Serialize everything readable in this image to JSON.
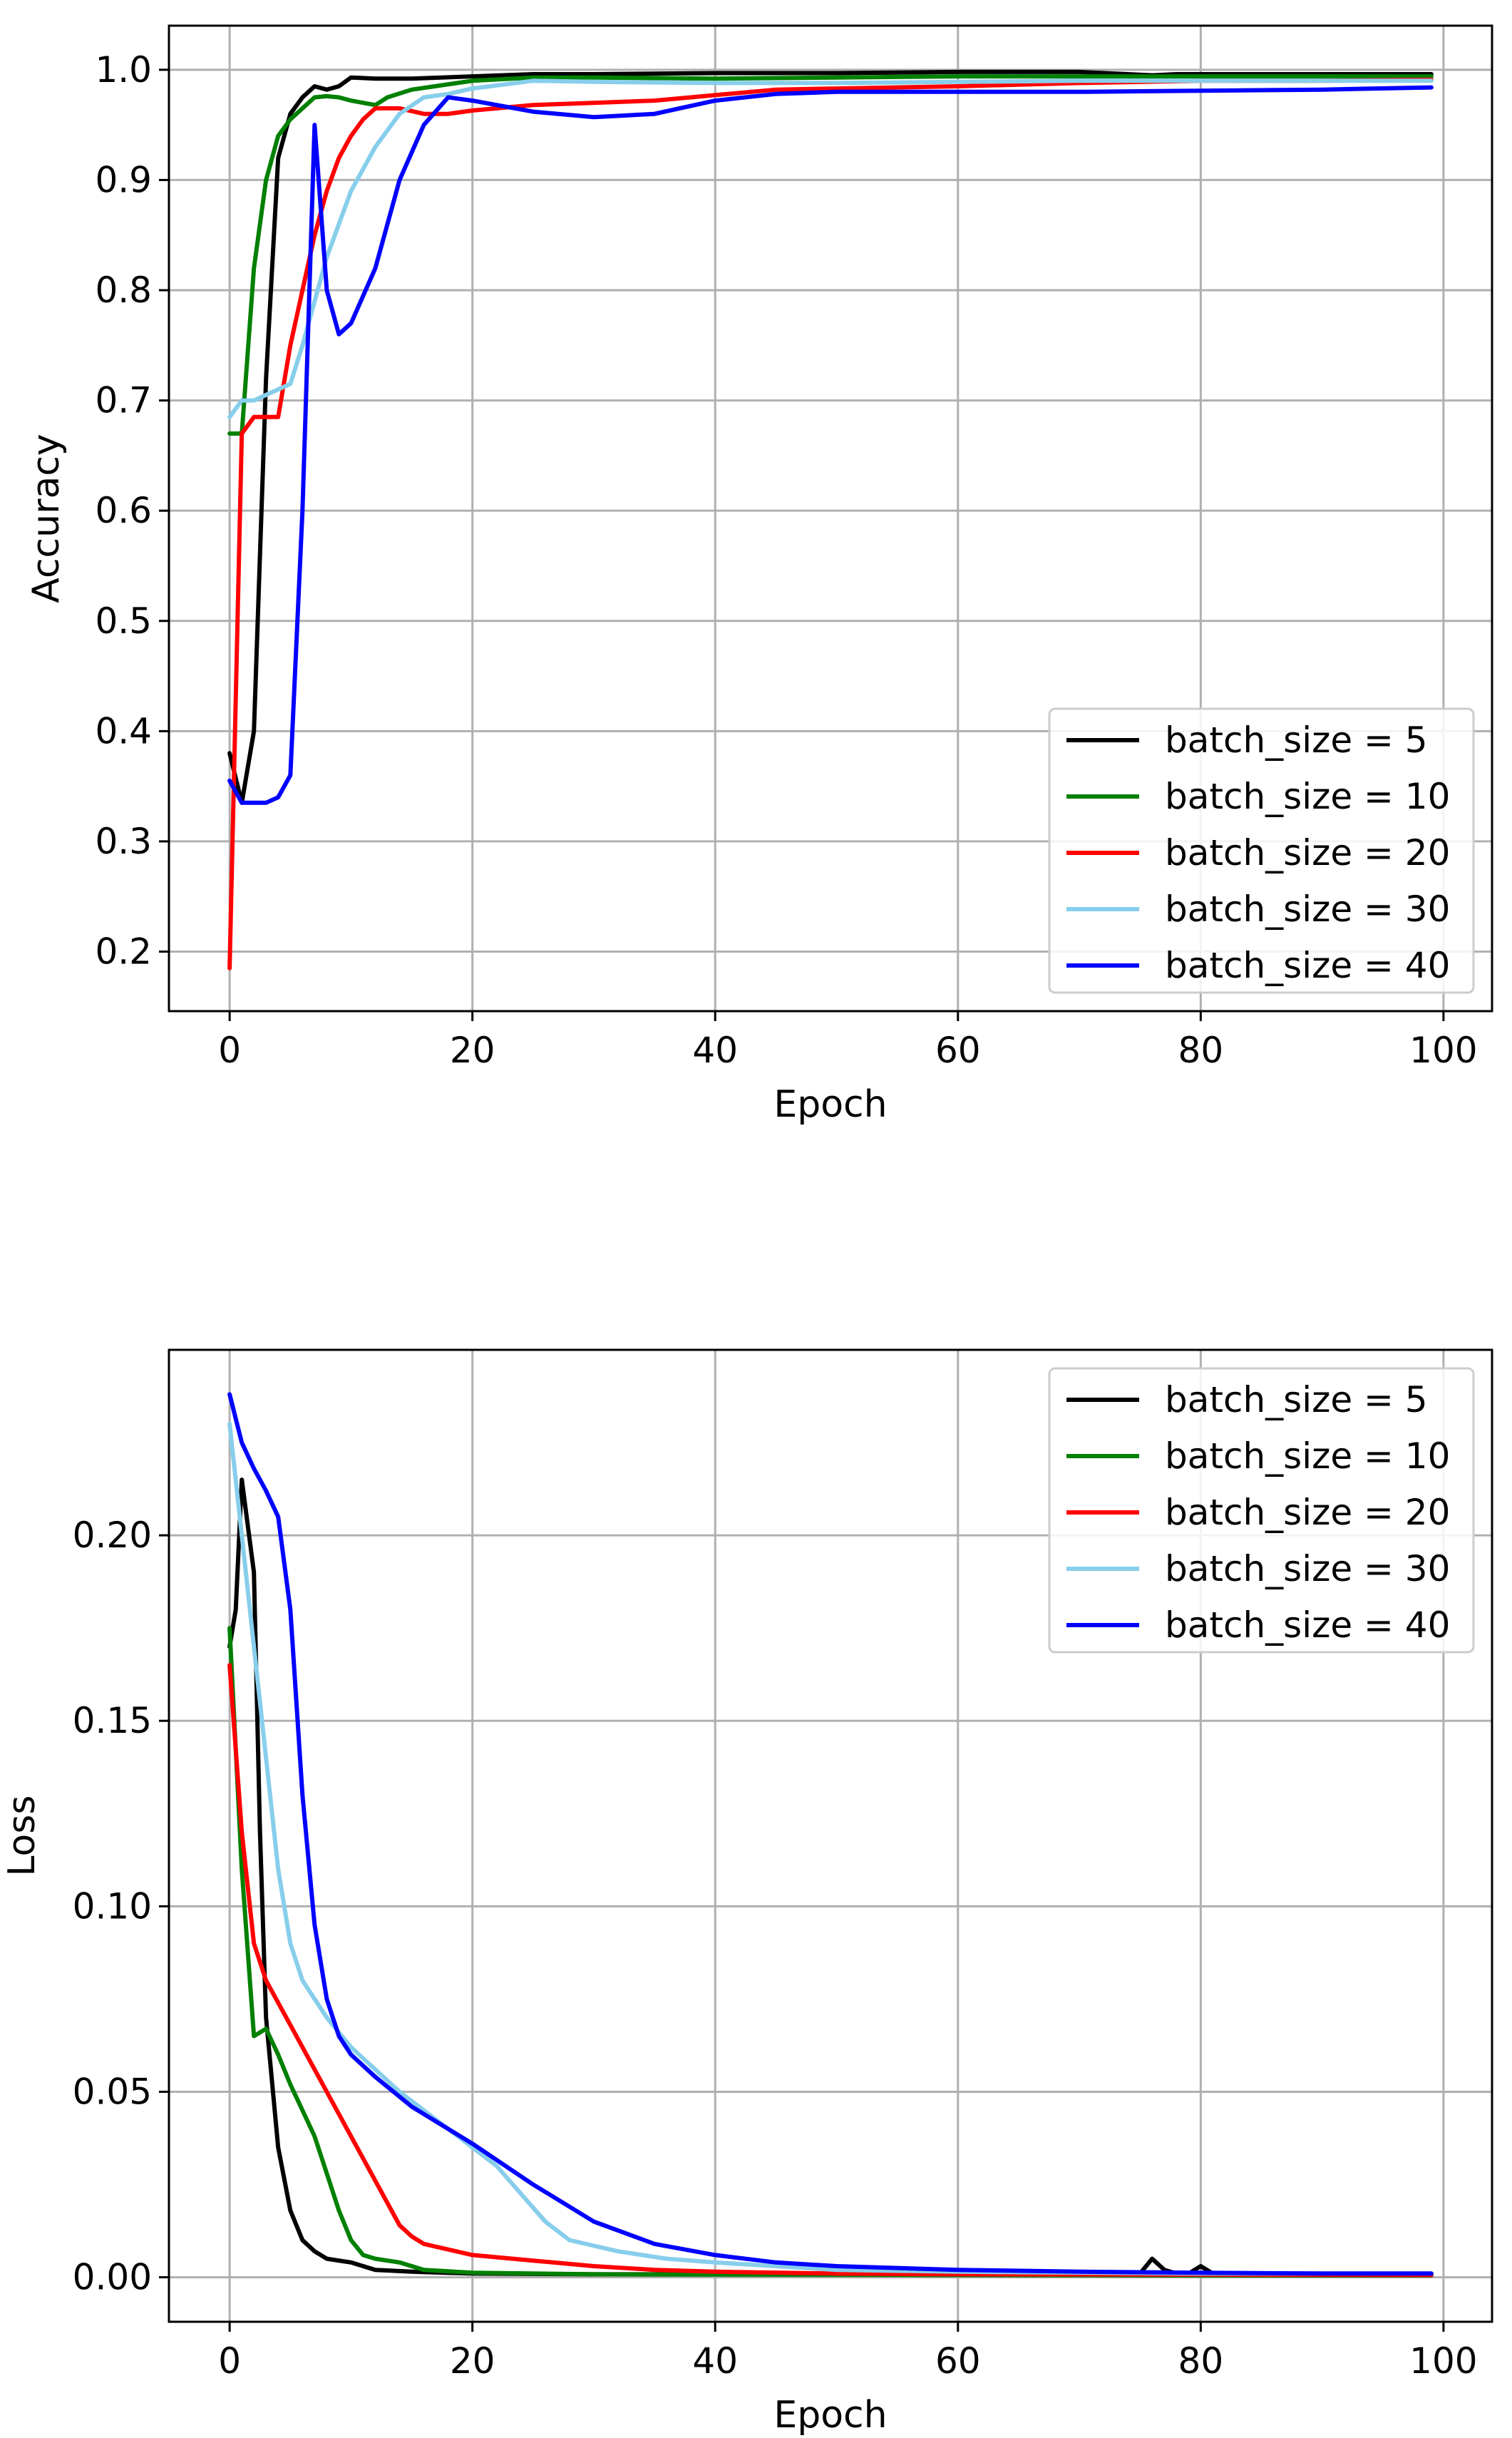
{
  "colors": {
    "batch_5": "#000000",
    "batch_10": "#008000",
    "batch_20": "#ff0000",
    "batch_30": "#87ceeb",
    "batch_40": "#0000ff",
    "grid": "#b0b0b0",
    "axes": "#000000",
    "legend_border": "#cccccc"
  },
  "chart_data": [
    {
      "type": "line",
      "title": "",
      "xlabel": "Epoch",
      "ylabel": "Accuracy",
      "xlim": [
        -5,
        104
      ],
      "ylim": [
        0.146,
        1.04
      ],
      "xticks": [
        0,
        20,
        40,
        60,
        80,
        100
      ],
      "xtick_labels": [
        "0",
        "20",
        "40",
        "60",
        "80",
        "100"
      ],
      "yticks": [
        0.2,
        0.3,
        0.4,
        0.5,
        0.6,
        0.7,
        0.8,
        0.9,
        1.0
      ],
      "ytick_labels": [
        "0.2",
        "0.3",
        "0.4",
        "0.5",
        "0.6",
        "0.7",
        "0.8",
        "0.9",
        "1.0"
      ],
      "grid": true,
      "legend_position": "lower-right",
      "series": [
        {
          "name": "batch_size = 5",
          "color": "#000000",
          "points": [
            [
              0,
              0.38
            ],
            [
              1,
              0.335
            ],
            [
              2,
              0.4
            ],
            [
              3,
              0.72
            ],
            [
              4,
              0.92
            ],
            [
              5,
              0.96
            ],
            [
              6,
              0.975
            ],
            [
              7,
              0.985
            ],
            [
              8,
              0.982
            ],
            [
              9,
              0.985
            ],
            [
              10,
              0.993
            ],
            [
              12,
              0.992
            ],
            [
              15,
              0.992
            ],
            [
              20,
              0.994
            ],
            [
              25,
              0.996
            ],
            [
              30,
              0.996
            ],
            [
              40,
              0.997
            ],
            [
              50,
              0.997
            ],
            [
              60,
              0.998
            ],
            [
              70,
              0.998
            ],
            [
              74,
              0.996
            ],
            [
              76,
              0.995
            ],
            [
              78,
              0.996
            ],
            [
              80,
              0.996
            ],
            [
              90,
              0.996
            ],
            [
              99,
              0.996
            ]
          ]
        },
        {
          "name": "batch_size = 10",
          "color": "#008000",
          "points": [
            [
              0,
              0.67
            ],
            [
              1,
              0.67
            ],
            [
              2,
              0.82
            ],
            [
              3,
              0.9
            ],
            [
              4,
              0.94
            ],
            [
              5,
              0.955
            ],
            [
              6,
              0.965
            ],
            [
              7,
              0.975
            ],
            [
              8,
              0.976
            ],
            [
              9,
              0.975
            ],
            [
              10,
              0.972
            ],
            [
              11,
              0.97
            ],
            [
              12,
              0.968
            ],
            [
              13,
              0.975
            ],
            [
              15,
              0.982
            ],
            [
              20,
              0.99
            ],
            [
              25,
              0.993
            ],
            [
              30,
              0.993
            ],
            [
              40,
              0.992
            ],
            [
              50,
              0.993
            ],
            [
              60,
              0.994
            ],
            [
              70,
              0.994
            ],
            [
              80,
              0.994
            ],
            [
              90,
              0.994
            ],
            [
              99,
              0.994
            ]
          ]
        },
        {
          "name": "batch_size = 20",
          "color": "#ff0000",
          "points": [
            [
              0,
              0.185
            ],
            [
              1,
              0.67
            ],
            [
              2,
              0.685
            ],
            [
              3,
              0.685
            ],
            [
              4,
              0.685
            ],
            [
              5,
              0.75
            ],
            [
              6,
              0.8
            ],
            [
              7,
              0.85
            ],
            [
              8,
              0.89
            ],
            [
              9,
              0.92
            ],
            [
              10,
              0.94
            ],
            [
              11,
              0.955
            ],
            [
              12,
              0.965
            ],
            [
              14,
              0.965
            ],
            [
              16,
              0.96
            ],
            [
              18,
              0.96
            ],
            [
              20,
              0.963
            ],
            [
              25,
              0.968
            ],
            [
              30,
              0.97
            ],
            [
              35,
              0.972
            ],
            [
              40,
              0.977
            ],
            [
              45,
              0.982
            ],
            [
              50,
              0.983
            ],
            [
              60,
              0.985
            ],
            [
              70,
              0.988
            ],
            [
              80,
              0.99
            ],
            [
              90,
              0.99
            ],
            [
              99,
              0.991
            ]
          ]
        },
        {
          "name": "batch_size = 30",
          "color": "#87ceeb",
          "points": [
            [
              0,
              0.685
            ],
            [
              1,
              0.7
            ],
            [
              2,
              0.7
            ],
            [
              3,
              0.705
            ],
            [
              4,
              0.71
            ],
            [
              5,
              0.715
            ],
            [
              6,
              0.75
            ],
            [
              7,
              0.79
            ],
            [
              8,
              0.83
            ],
            [
              9,
              0.86
            ],
            [
              10,
              0.89
            ],
            [
              12,
              0.93
            ],
            [
              14,
              0.96
            ],
            [
              16,
              0.975
            ],
            [
              18,
              0.978
            ],
            [
              20,
              0.983
            ],
            [
              25,
              0.99
            ],
            [
              30,
              0.989
            ],
            [
              40,
              0.988
            ],
            [
              50,
              0.988
            ],
            [
              60,
              0.989
            ],
            [
              70,
              0.99
            ],
            [
              80,
              0.99
            ],
            [
              90,
              0.99
            ],
            [
              99,
              0.99
            ]
          ]
        },
        {
          "name": "batch_size = 40",
          "color": "#0000ff",
          "points": [
            [
              0,
              0.355
            ],
            [
              1,
              0.335
            ],
            [
              2,
              0.335
            ],
            [
              3,
              0.335
            ],
            [
              4,
              0.34
            ],
            [
              5,
              0.36
            ],
            [
              6,
              0.6
            ],
            [
              7,
              0.95
            ],
            [
              8,
              0.8
            ],
            [
              9,
              0.76
            ],
            [
              10,
              0.77
            ],
            [
              12,
              0.82
            ],
            [
              14,
              0.9
            ],
            [
              16,
              0.95
            ],
            [
              18,
              0.975
            ],
            [
              20,
              0.972
            ],
            [
              25,
              0.962
            ],
            [
              30,
              0.957
            ],
            [
              35,
              0.96
            ],
            [
              40,
              0.972
            ],
            [
              45,
              0.978
            ],
            [
              50,
              0.98
            ],
            [
              60,
              0.98
            ],
            [
              70,
              0.98
            ],
            [
              80,
              0.981
            ],
            [
              90,
              0.982
            ],
            [
              99,
              0.984
            ]
          ]
        }
      ]
    },
    {
      "type": "line",
      "title": "",
      "xlabel": "Epoch",
      "ylabel": "Loss",
      "xlim": [
        -5,
        104
      ],
      "ylim": [
        -0.012,
        0.25
      ],
      "xticks": [
        0,
        20,
        40,
        60,
        80,
        100
      ],
      "xtick_labels": [
        "0",
        "20",
        "40",
        "60",
        "80",
        "100"
      ],
      "yticks": [
        0.0,
        0.05,
        0.1,
        0.15,
        0.2
      ],
      "ytick_labels": [
        "0.00",
        "0.05",
        "0.10",
        "0.15",
        "0.20"
      ],
      "grid": true,
      "legend_position": "upper-right",
      "series": [
        {
          "name": "batch_size = 5",
          "color": "#000000",
          "points": [
            [
              0,
              0.17
            ],
            [
              0.5,
              0.18
            ],
            [
              1,
              0.215
            ],
            [
              2,
              0.19
            ],
            [
              2.5,
              0.12
            ],
            [
              3,
              0.07
            ],
            [
              4,
              0.035
            ],
            [
              5,
              0.018
            ],
            [
              6,
              0.01
            ],
            [
              7,
              0.007
            ],
            [
              8,
              0.005
            ],
            [
              10,
              0.004
            ],
            [
              12,
              0.002
            ],
            [
              15,
              0.0015
            ],
            [
              20,
              0.001
            ],
            [
              30,
              0.0008
            ],
            [
              40,
              0.0008
            ],
            [
              50,
              0.0007
            ],
            [
              60,
              0.0007
            ],
            [
              70,
              0.0007
            ],
            [
              75,
              0.001
            ],
            [
              76,
              0.005
            ],
            [
              77,
              0.002
            ],
            [
              78,
              0.001
            ],
            [
              79,
              0.001
            ],
            [
              80,
              0.003
            ],
            [
              81,
              0.001
            ],
            [
              90,
              0.001
            ],
            [
              99,
              0.001
            ]
          ]
        },
        {
          "name": "batch_size = 10",
          "color": "#008000",
          "points": [
            [
              0,
              0.175
            ],
            [
              1,
              0.11
            ],
            [
              2,
              0.065
            ],
            [
              3,
              0.067
            ],
            [
              4,
              0.06
            ],
            [
              5,
              0.052
            ],
            [
              6,
              0.045
            ],
            [
              7,
              0.038
            ],
            [
              8,
              0.028
            ],
            [
              9,
              0.018
            ],
            [
              10,
              0.01
            ],
            [
              11,
              0.006
            ],
            [
              12,
              0.005
            ],
            [
              14,
              0.004
            ],
            [
              16,
              0.002
            ],
            [
              20,
              0.0012
            ],
            [
              30,
              0.0008
            ],
            [
              40,
              0.0007
            ],
            [
              60,
              0.0006
            ],
            [
              80,
              0.0005
            ],
            [
              99,
              0.0005
            ]
          ]
        },
        {
          "name": "batch_size = 20",
          "color": "#ff0000",
          "points": [
            [
              0,
              0.165
            ],
            [
              1,
              0.12
            ],
            [
              2,
              0.09
            ],
            [
              3,
              0.08
            ],
            [
              4,
              0.074
            ],
            [
              5,
              0.068
            ],
            [
              6,
              0.062
            ],
            [
              8,
              0.05
            ],
            [
              10,
              0.038
            ],
            [
              12,
              0.026
            ],
            [
              14,
              0.014
            ],
            [
              15,
              0.011
            ],
            [
              16,
              0.009
            ],
            [
              20,
              0.006
            ],
            [
              25,
              0.0045
            ],
            [
              30,
              0.003
            ],
            [
              35,
              0.002
            ],
            [
              40,
              0.0015
            ],
            [
              50,
              0.001
            ],
            [
              60,
              0.0008
            ],
            [
              80,
              0.0007
            ],
            [
              99,
              0.0006
            ]
          ]
        },
        {
          "name": "batch_size = 30",
          "color": "#87ceeb",
          "points": [
            [
              0,
              0.23
            ],
            [
              1,
              0.2
            ],
            [
              2,
              0.17
            ],
            [
              3,
              0.14
            ],
            [
              4,
              0.11
            ],
            [
              5,
              0.09
            ],
            [
              6,
              0.08
            ],
            [
              8,
              0.07
            ],
            [
              10,
              0.062
            ],
            [
              14,
              0.05
            ],
            [
              18,
              0.04
            ],
            [
              22,
              0.03
            ],
            [
              26,
              0.015
            ],
            [
              28,
              0.01
            ],
            [
              32,
              0.007
            ],
            [
              36,
              0.005
            ],
            [
              40,
              0.004
            ],
            [
              50,
              0.002
            ],
            [
              60,
              0.0015
            ],
            [
              80,
              0.001
            ],
            [
              99,
              0.001
            ]
          ]
        },
        {
          "name": "batch_size = 40",
          "color": "#0000ff",
          "points": [
            [
              0,
              0.238
            ],
            [
              1,
              0.225
            ],
            [
              2,
              0.218
            ],
            [
              3,
              0.212
            ],
            [
              4,
              0.205
            ],
            [
              5,
              0.18
            ],
            [
              6,
              0.13
            ],
            [
              7,
              0.095
            ],
            [
              8,
              0.075
            ],
            [
              9,
              0.065
            ],
            [
              10,
              0.06
            ],
            [
              12,
              0.054
            ],
            [
              15,
              0.046
            ],
            [
              20,
              0.036
            ],
            [
              25,
              0.025
            ],
            [
              30,
              0.015
            ],
            [
              35,
              0.009
            ],
            [
              40,
              0.006
            ],
            [
              45,
              0.004
            ],
            [
              50,
              0.003
            ],
            [
              60,
              0.002
            ],
            [
              70,
              0.0015
            ],
            [
              80,
              0.0012
            ],
            [
              90,
              0.001
            ],
            [
              99,
              0.001
            ]
          ]
        }
      ]
    }
  ]
}
